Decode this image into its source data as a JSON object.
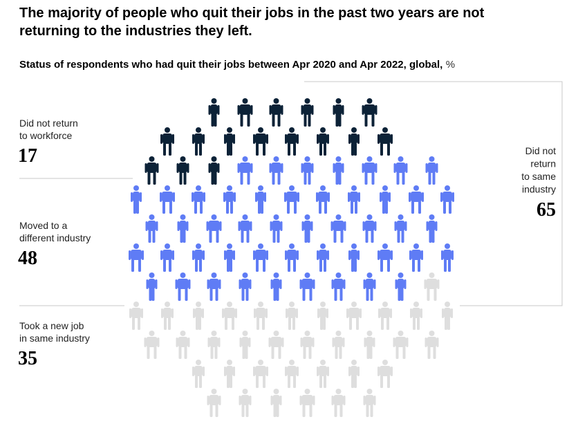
{
  "chart_data": {
    "type": "unit",
    "title_lines": [
      "The majority of people who quit their jobs in the past two years are not",
      "returning to the industries they left."
    ],
    "subtitle": "Status of respondents who had quit their jobs between Apr 2020 and Apr 2022, global,",
    "unit": "%",
    "series": [
      {
        "label_lines": [
          "Did not return",
          "to workforce"
        ],
        "value": 17,
        "color": "#0c2237"
      },
      {
        "label_lines": [
          "Moved to a",
          "different industry"
        ],
        "value": 48,
        "color": "#5f7cf5"
      },
      {
        "label_lines": [
          "Took a new job",
          "in same industry"
        ],
        "value": 35,
        "color": "#dedede"
      }
    ],
    "group": {
      "label_lines": [
        "Did not",
        "return",
        "to same",
        "industry"
      ],
      "value": 65
    }
  }
}
